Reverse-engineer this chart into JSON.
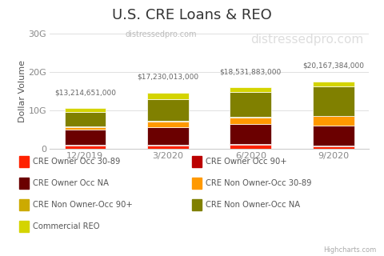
{
  "title": "U.S. CRE Loans & REO",
  "subtitle_center": "distressedpro.com",
  "subtitle_right": "distressedpro.com",
  "watermark": "Highcharts.com",
  "ylabel": "Dollar Volume",
  "categories": [
    "12/2019",
    "3/2020",
    "6/2020",
    "9/2020"
  ],
  "totals": [
    "$13,214,651,000",
    "$17,230,013,000",
    "$18,531,883,000",
    "$20,167,384,000"
  ],
  "totals_values": [
    13214651000,
    17230013000,
    18531883000,
    20167384000
  ],
  "ylim": [
    0,
    30000000000
  ],
  "yticks": [
    0,
    10000000000,
    20000000000,
    30000000000
  ],
  "ytick_labels": [
    "0",
    "10G",
    "20G",
    "30G"
  ],
  "series": [
    {
      "name": "CRE Owner Occ 30-89",
      "color": "#ff2200",
      "values": [
        850000000,
        850000000,
        950000000,
        480000000
      ]
    },
    {
      "name": "CRE Owner Occ 90+",
      "color": "#bb0000",
      "values": [
        180000000,
        200000000,
        250000000,
        180000000
      ]
    },
    {
      "name": "CRE Owner Occ NA",
      "color": "#6b0000",
      "values": [
        3800000000,
        4500000000,
        5100000000,
        5300000000
      ]
    },
    {
      "name": "CRE Non Owner-Occ 30-89",
      "color": "#ff9900",
      "values": [
        800000000,
        1500000000,
        1700000000,
        2400000000
      ]
    },
    {
      "name": "CRE Non Owner-Occ 90+",
      "color": "#ccaa00",
      "values": [
        180000000,
        180000000,
        180000000,
        180000000
      ]
    },
    {
      "name": "CRE Non Owner-Occ NA",
      "color": "#808000",
      "values": [
        3600000000,
        5700000000,
        6500000000,
        7700000000
      ]
    },
    {
      "name": "Commercial REO",
      "color": "#d4d400",
      "values": [
        1200000000,
        1500000000,
        1200000000,
        1200000000
      ]
    }
  ],
  "bar_width": 0.5,
  "background_color": "#ffffff",
  "grid_color": "#e0e0e0",
  "title_fontsize": 13,
  "label_fontsize": 8,
  "tick_fontsize": 8,
  "legend_fontsize": 7.2,
  "annotation_fontsize": 6.5
}
